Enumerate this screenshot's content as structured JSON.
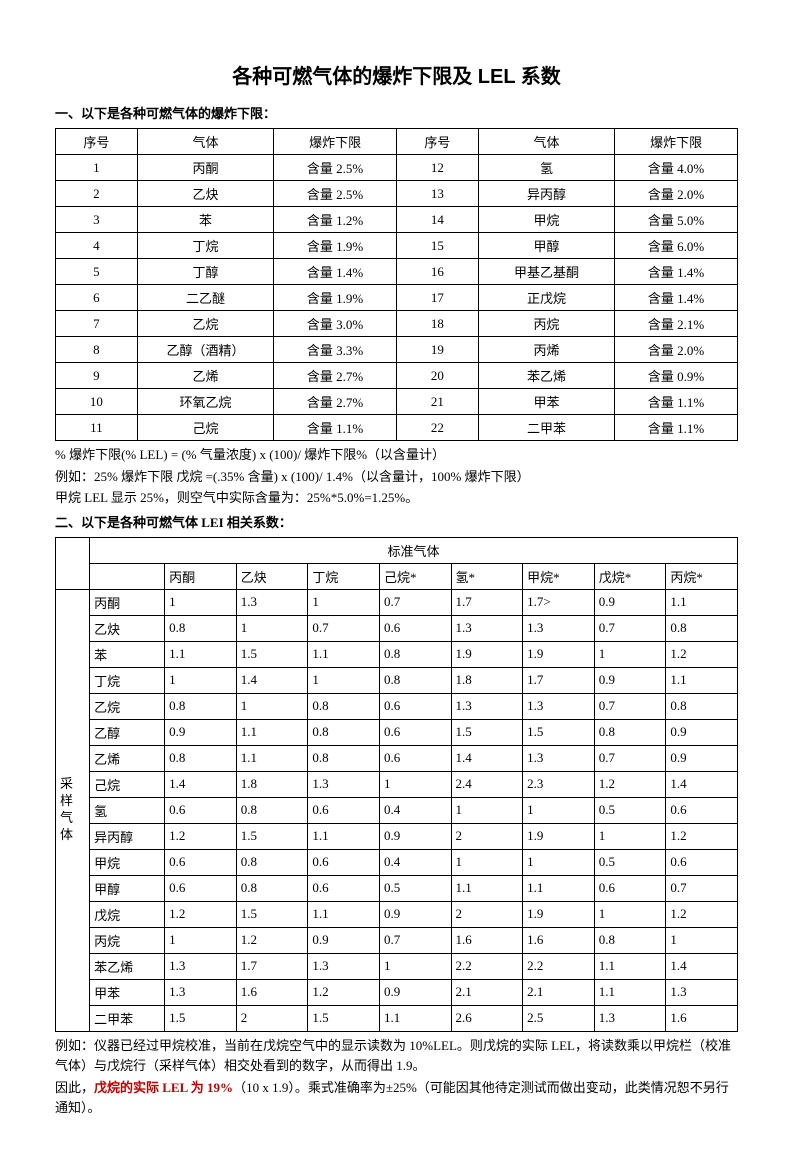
{
  "title": "各种可燃气体的爆炸下限及 LEL 系数",
  "section1": {
    "heading": "一、以下是各种可燃气体的爆炸下限：",
    "columns": [
      "序号",
      "气体",
      "爆炸下限",
      "序号",
      "气体",
      "爆炸下限"
    ],
    "rows": [
      [
        "1",
        "丙酮",
        "含量 2.5%",
        "12",
        "氢",
        "含量 4.0%"
      ],
      [
        "2",
        "乙炔",
        "含量 2.5%",
        "13",
        "异丙醇",
        "含量 2.0%"
      ],
      [
        "3",
        "苯",
        "含量 1.2%",
        "14",
        "甲烷",
        "含量 5.0%"
      ],
      [
        "4",
        "丁烷",
        "含量 1.9%",
        "15",
        "甲醇",
        "含量 6.0%"
      ],
      [
        "5",
        "丁醇",
        "含量 1.4%",
        "16",
        "甲基乙基酮",
        "含量 1.4%"
      ],
      [
        "6",
        "二乙醚",
        "含量 1.9%",
        "17",
        "正戊烷",
        "含量 1.4%"
      ],
      [
        "7",
        "乙烷",
        "含量 3.0%",
        "18",
        "丙烷",
        "含量 2.1%"
      ],
      [
        "8",
        "乙醇（酒精）",
        "含量 3.3%",
        "19",
        "丙烯",
        "含量 2.0%"
      ],
      [
        "9",
        "乙烯",
        "含量 2.7%",
        "20",
        "苯乙烯",
        "含量 0.9%"
      ],
      [
        "10",
        "环氧乙烷",
        "含量 2.7%",
        "21",
        "甲苯",
        "含量 1.1%"
      ],
      [
        "11",
        "己烷",
        "含量 1.1%",
        "22",
        "二甲苯",
        "含量 1.1%"
      ]
    ],
    "notes": [
      "% 爆炸下限(% LEL) = (%  气量浓度) x (100)/  爆炸下限%（以含量计）",
      "例如：25% 爆炸下限 戊烷 =(.35%  含量) x (100)/ 1.4%（以含量计，100% 爆炸下限）",
      "甲烷 LEL 显示 25%，则空气中实际含量为：25%*5.0%=1.25%。"
    ]
  },
  "section2": {
    "heading": "二、以下是各种可燃气体 LEI 相关系数：",
    "top_label": "标准气体",
    "side_label": "采样气体",
    "col_headers": [
      "丙酮",
      "乙炔",
      "丁烷",
      "己烷*",
      "氢*",
      "甲烷*",
      "戊烷*",
      "丙烷*"
    ],
    "row_labels": [
      "丙酮",
      "乙炔",
      "苯",
      "丁烷",
      "乙烷",
      "乙醇",
      "乙烯",
      "己烷",
      "氢",
      "异丙醇",
      "甲烷",
      "甲醇",
      "戊烷",
      "丙烷",
      "苯乙烯",
      "甲苯",
      "二甲苯"
    ],
    "data": [
      [
        "1",
        "1.3",
        "1",
        "0.7",
        "1.7",
        "1.7>",
        "0.9",
        "1.1"
      ],
      [
        "0.8",
        "1",
        "0.7",
        "0.6",
        "1.3",
        "1.3",
        "0.7",
        "0.8"
      ],
      [
        "1.1",
        "1.5",
        "1.1",
        "0.8",
        "1.9",
        "1.9",
        "1",
        "1.2"
      ],
      [
        "1",
        "1.4",
        "1",
        "0.8",
        "1.8",
        "1.7",
        "0.9",
        "1.1"
      ],
      [
        "0.8",
        "1",
        "0.8",
        "0.6",
        "1.3",
        "1.3",
        "0.7",
        "0.8"
      ],
      [
        "0.9",
        "1.1",
        "0.8",
        "0.6",
        "1.5",
        "1.5",
        "0.8",
        "0.9"
      ],
      [
        "0.8",
        "1.1",
        "0.8",
        "0.6",
        "1.4",
        "1.3",
        "0.7",
        "0.9"
      ],
      [
        "1.4",
        "1.8",
        "1.3",
        "1",
        "2.4",
        "2.3",
        "1.2",
        "1.4"
      ],
      [
        "0.6",
        "0.8",
        "0.6",
        "0.4",
        "1",
        "1",
        "0.5",
        "0.6"
      ],
      [
        "1.2",
        "1.5",
        "1.1",
        "0.9",
        "2",
        "1.9",
        "1",
        "1.2"
      ],
      [
        "0.6",
        "0.8",
        "0.6",
        "0.4",
        "1",
        "1",
        "0.5",
        "0.6"
      ],
      [
        "0.6",
        "0.8",
        "0.6",
        "0.5",
        "1.1",
        "1.1",
        "0.6",
        "0.7"
      ],
      [
        "1.2",
        "1.5",
        "1.1",
        "0.9",
        "2",
        "1.9",
        "1",
        "1.2"
      ],
      [
        "1",
        "1.2",
        "0.9",
        "0.7",
        "1.6",
        "1.6",
        "0.8",
        "1"
      ],
      [
        "1.3",
        "1.7",
        "1.3",
        "1",
        "2.2",
        "2.2",
        "1.1",
        "1.4"
      ],
      [
        "1.3",
        "1.6",
        "1.2",
        "0.9",
        "2.1",
        "2.1",
        "1.1",
        "1.3"
      ],
      [
        "1.5",
        "2",
        "1.5",
        "1.1",
        "2.6",
        "2.5",
        "1.3",
        "1.6"
      ]
    ],
    "footnotes": [
      "例如：仪器已经过甲烷校准，当前在戊烷空气中的显示读数为 10%LEL。则戊烷的实际 LEL，将读数乘以甲烷栏（校准气体）与戊烷行（采样气体）相交处看到的数字，从而得出 1.9。",
      {
        "prefix": "因此，",
        "red": "戊烷的实际 LEL 为 19%",
        "suffix": "（10 x 1.9）。乘式准确率为±25%（可能因其他待定测试而做出变动，此类情况恕不另行通知）。"
      }
    ]
  },
  "style": {
    "page_bg": "#ffffff",
    "text_color": "#000000",
    "red_color": "#c00000",
    "border_color": "#000000",
    "title_fontsize": 20,
    "body_fontsize": 13,
    "t1_col_widths": [
      "12%",
      "20%",
      "18%",
      "12%",
      "20%",
      "18%"
    ],
    "t2_side_width": "5%",
    "t2_label_width": "11%",
    "t2_col_width": "10.5%"
  }
}
